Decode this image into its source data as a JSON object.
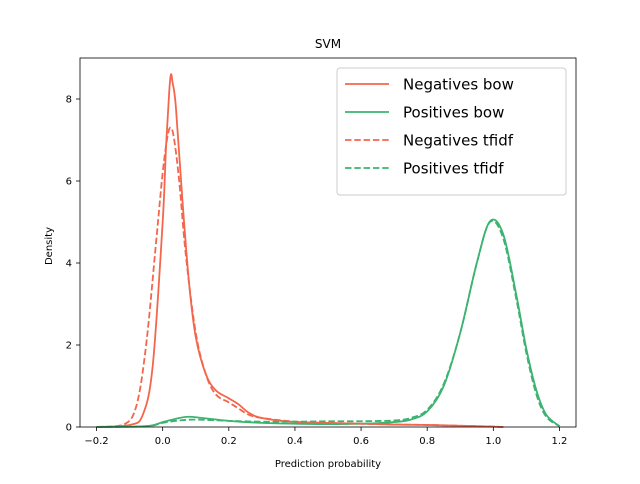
{
  "chart_data": {
    "type": "line",
    "title": "SVM",
    "xlabel": "Prediction probability",
    "ylabel": "Density",
    "xlim": [
      -0.25,
      1.25
    ],
    "ylim": [
      0,
      9
    ],
    "xticks": [
      -0.2,
      0.0,
      0.2,
      0.4,
      0.6,
      0.8,
      1.0,
      1.2
    ],
    "xtick_labels": [
      "−0.2",
      "0.0",
      "0.2",
      "0.4",
      "0.6",
      "0.8",
      "1.0",
      "1.2"
    ],
    "yticks": [
      0,
      2,
      4,
      6,
      8
    ],
    "ytick_labels": [
      "0",
      "2",
      "4",
      "6",
      "8"
    ],
    "grid": false,
    "legend_position": "top-right",
    "series": [
      {
        "name": "Negatives bow",
        "color": "#f4664c",
        "dash": "solid",
        "x": [
          -0.2,
          -0.1,
          -0.06,
          -0.03,
          0.0,
          0.01,
          0.02,
          0.025,
          0.03,
          0.04,
          0.06,
          0.08,
          0.1,
          0.13,
          0.16,
          0.2,
          0.23,
          0.26,
          0.3,
          0.4,
          0.5,
          0.6,
          0.7,
          0.8,
          0.9,
          1.0,
          1.03
        ],
        "y": [
          0,
          0.05,
          0.3,
          1.5,
          5.0,
          6.8,
          8.2,
          8.6,
          8.4,
          7.8,
          5.5,
          3.5,
          2.2,
          1.3,
          0.9,
          0.7,
          0.55,
          0.35,
          0.22,
          0.12,
          0.1,
          0.08,
          0.06,
          0.05,
          0.03,
          0.01,
          0
        ]
      },
      {
        "name": "Positives bow",
        "color": "#3cb371",
        "dash": "solid",
        "x": [
          -0.2,
          -0.05,
          0.0,
          0.05,
          0.08,
          0.12,
          0.2,
          0.3,
          0.4,
          0.5,
          0.6,
          0.7,
          0.75,
          0.8,
          0.85,
          0.9,
          0.95,
          0.99,
          1.03,
          1.07,
          1.1,
          1.13,
          1.16,
          1.2
        ],
        "y": [
          0,
          0.02,
          0.12,
          0.22,
          0.25,
          0.22,
          0.15,
          0.1,
          0.08,
          0.07,
          0.08,
          0.12,
          0.18,
          0.38,
          1.0,
          2.3,
          4.0,
          5.02,
          4.7,
          3.2,
          1.9,
          0.9,
          0.3,
          0.02
        ]
      },
      {
        "name": "Negatives tfidf",
        "color": "#f4664c",
        "dash": "dashed",
        "x": [
          -0.2,
          -0.12,
          -0.08,
          -0.05,
          -0.02,
          0.0,
          0.015,
          0.025,
          0.035,
          0.05,
          0.07,
          0.1,
          0.13,
          0.16,
          0.2,
          0.23,
          0.26,
          0.3,
          0.4,
          0.5,
          0.6,
          0.7,
          0.8,
          0.9,
          1.0,
          1.03
        ],
        "y": [
          0,
          0.05,
          0.5,
          2.0,
          4.5,
          6.2,
          7.1,
          7.3,
          7.0,
          6.0,
          4.2,
          2.3,
          1.3,
          0.8,
          0.6,
          0.45,
          0.3,
          0.22,
          0.13,
          0.1,
          0.08,
          0.06,
          0.05,
          0.03,
          0.01,
          0
        ]
      },
      {
        "name": "Positives tfidf",
        "color": "#3cb371",
        "dash": "dashed",
        "x": [
          -0.2,
          -0.05,
          0.0,
          0.05,
          0.1,
          0.2,
          0.3,
          0.4,
          0.5,
          0.6,
          0.7,
          0.75,
          0.8,
          0.85,
          0.9,
          0.95,
          0.99,
          1.03,
          1.07,
          1.1,
          1.13,
          1.16,
          1.2
        ],
        "y": [
          0,
          0.02,
          0.1,
          0.16,
          0.18,
          0.15,
          0.13,
          0.13,
          0.14,
          0.14,
          0.16,
          0.22,
          0.42,
          1.05,
          2.3,
          4.0,
          5.0,
          4.6,
          3.1,
          1.8,
          0.8,
          0.25,
          0.02
        ]
      }
    ]
  }
}
